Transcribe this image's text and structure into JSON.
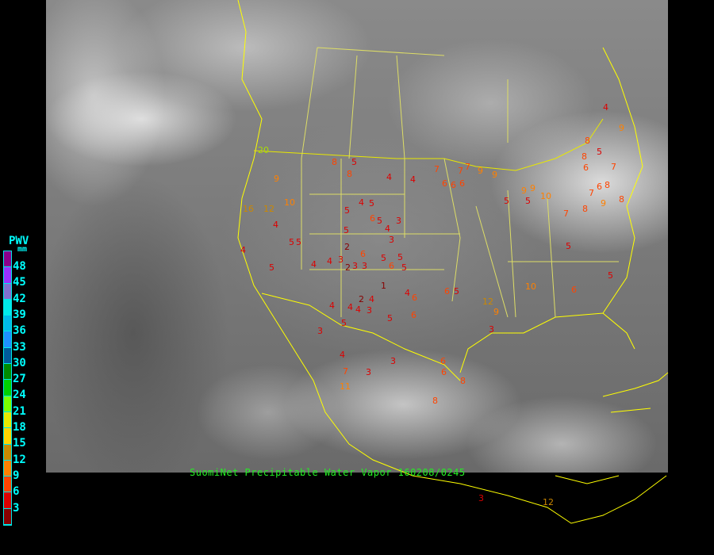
{
  "caption": "SuomiNet Precipitable Water Vapor 160208/0245",
  "legend": {
    "title": "PWV",
    "unit": "mm",
    "labels": [
      "48",
      "45",
      "42",
      "39",
      "36",
      "33",
      "30",
      "27",
      "24",
      "21",
      "18",
      "15",
      "12",
      "9",
      "6",
      "3"
    ],
    "colors": [
      "#8b008b",
      "#9a30ff",
      "#8070d0",
      "#00eaea",
      "#00b8e8",
      "#1e90ff",
      "#005a9a",
      "#008a00",
      "#00d000",
      "#7cff00",
      "#e8e800",
      "#ffd400",
      "#c88a00",
      "#ff8000",
      "#ff4400",
      "#dd0000",
      "#880000"
    ]
  },
  "map": {
    "boundary_color": "#ffff00",
    "stations": [
      "5",
      "8",
      "8",
      "4",
      "4",
      "7",
      "6",
      "6",
      "6",
      "7",
      "9",
      "9",
      "5",
      "4",
      "5",
      "6",
      "5",
      "2",
      "3",
      "5",
      "4",
      "3",
      "6",
      "5",
      "5",
      "2",
      "4",
      "4",
      "3",
      "3",
      "3",
      "5",
      "6",
      "5",
      "1",
      "4",
      "2",
      "4",
      "3",
      "5",
      "6",
      "4",
      "3",
      "3",
      "5",
      "6",
      "4",
      "3",
      "4",
      "4",
      "5",
      "6",
      "6",
      "7",
      "5",
      "6",
      "6",
      "8",
      "7",
      "9",
      "10",
      "9",
      "5",
      "8",
      "7",
      "8",
      "5",
      "4",
      "6",
      "5",
      "9",
      "12",
      "10",
      "9",
      "8",
      "7",
      "20",
      "16",
      "12",
      "10",
      "9",
      "4",
      "5",
      "11",
      "8",
      "3",
      "8",
      "7",
      "3",
      "12",
      "5",
      "6",
      "5",
      "4",
      "9",
      "8"
    ]
  }
}
